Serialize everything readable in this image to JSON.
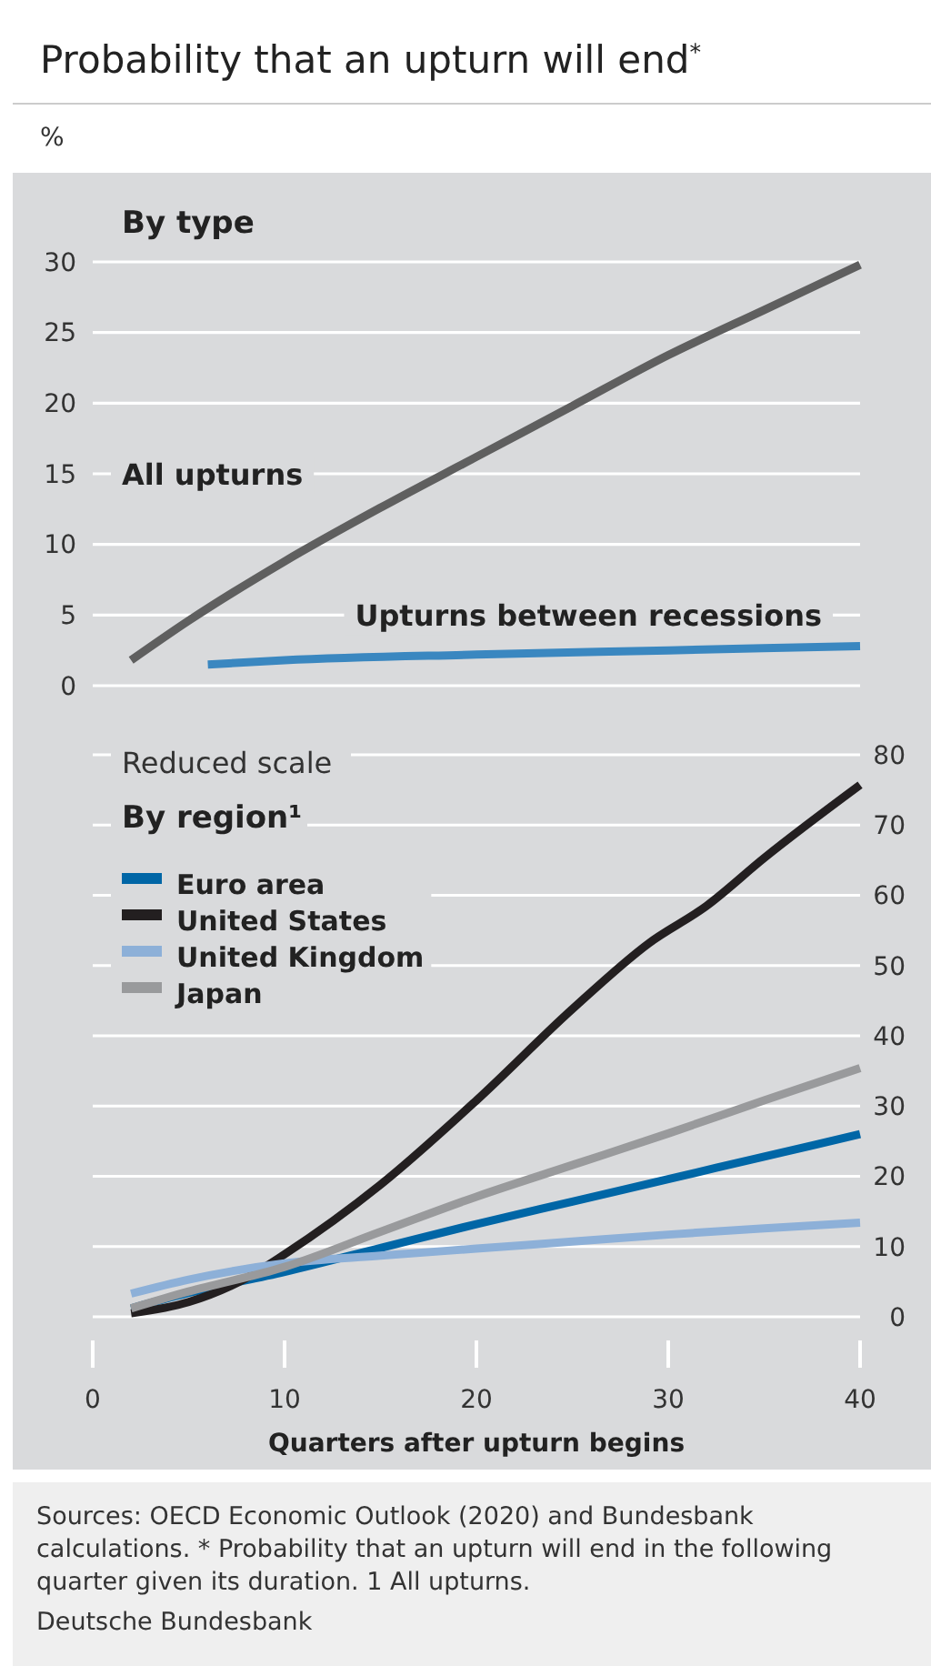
{
  "chart_data": [
    {
      "type": "line",
      "title": "Probability that an upturn will end$^{*}$",
      "subtitle": "By type",
      "ylabel": "%",
      "xlim": [
        0,
        40
      ],
      "xticks": [
        0,
        10,
        20,
        30,
        40
      ],
      "ylim": [
        0,
        30
      ],
      "yticks": [
        0,
        5,
        10,
        15,
        20,
        25,
        30
      ],
      "grid": "y",
      "tick_labels": "y",
      "legend": false,
      "series": [
        {
          "name": "All upturns",
          "color": "#5f5f5f",
          "x": [
            2,
            5,
            10,
            15,
            20,
            25,
            30,
            35,
            40
          ],
          "values": [
            1.8,
            4.6,
            8.8,
            12.6,
            16.2,
            19.8,
            23.4,
            26.6,
            29.8
          ]
        },
        {
          "name": "Upturns between recessions",
          "color": "#3a87c0",
          "x": [
            6,
            10,
            20,
            30,
            40
          ],
          "values": [
            1.5,
            1.8,
            2.2,
            2.5,
            2.8
          ]
        }
      ]
    },
    {
      "type": "line",
      "title": "By region¹",
      "subtitle": "Reduced scale",
      "xlabel": "Quarters after upturn begins",
      "xlim": [
        0,
        40
      ],
      "xticks": [
        0,
        10,
        20,
        30,
        40
      ],
      "ylim": [
        0,
        80
      ],
      "yticks": [
        0,
        10,
        20,
        30,
        40,
        50,
        60,
        70,
        80
      ],
      "grid": "y",
      "legend": "top left",
      "annotations": [
        "Sources: OECD Economic Outlook (2020) and Bundesbank calculations. * Probability that an upturn will end in the following quarter given its duration. 1 All upturns.",
        "Deutsche Bundesbank"
      ],
      "series": [
        {
          "name": "Euro area",
          "color": "#0066a6",
          "x": [
            2,
            5,
            10,
            15,
            20,
            25,
            30,
            35,
            40
          ],
          "values": [
            1.2,
            3.4,
            6.4,
            9.8,
            13.2,
            16.4,
            19.6,
            22.8,
            26.0
          ]
        },
        {
          "name": "United States",
          "color": "#231f20",
          "x": [
            2,
            5,
            8,
            10,
            15,
            20,
            25,
            29,
            32,
            35,
            40
          ],
          "values": [
            0.5,
            2.1,
            5.5,
            8.9,
            18.8,
            30.8,
            43.8,
            53.2,
            58.5,
            65.3,
            75.7
          ]
        },
        {
          "name": "United Kingdom",
          "color": "#8db0d8",
          "x": [
            2,
            5,
            10,
            15,
            20,
            25,
            30,
            35,
            40
          ],
          "values": [
            3.3,
            5.3,
            7.6,
            8.7,
            9.7,
            10.7,
            11.7,
            12.6,
            13.4
          ]
        },
        {
          "name": "Japan",
          "color": "#999a9c",
          "x": [
            2,
            5,
            10,
            15,
            20,
            25,
            30,
            35,
            40
          ],
          "values": [
            1.2,
            3.6,
            7.1,
            12.1,
            17.1,
            21.6,
            26.1,
            30.8,
            35.4
          ]
        }
      ]
    }
  ]
}
